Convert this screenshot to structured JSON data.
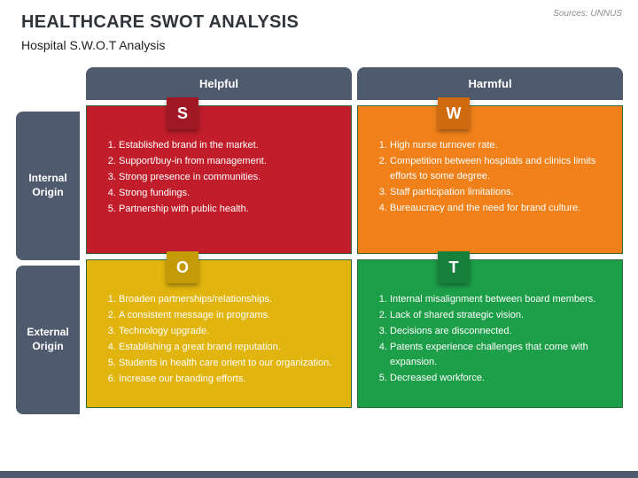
{
  "title": "HEALTHCARE SWOT ANALYSIS",
  "subtitle": "Hospital S.W.O.T Analysis",
  "source": "Sources: UNNUS",
  "colors": {
    "header_bg": "#4f5a6e",
    "border": "#2d6b3e",
    "footer": "#4f5a6e"
  },
  "columns": [
    {
      "label": "Helpful"
    },
    {
      "label": "Harmful"
    }
  ],
  "rows": [
    {
      "label": "Internal Origin"
    },
    {
      "label": "External Origin"
    }
  ],
  "quadrants": {
    "s": {
      "letter": "S",
      "bg": "#c21d2b",
      "letter_bg": "#a01823",
      "items": [
        "Established brand in the market.",
        "Support/buy-in from management.",
        "Strong presence in communities.",
        "Strong fundings.",
        "Partnership with public health."
      ]
    },
    "w": {
      "letter": "W",
      "bg": "#f08019",
      "letter_bg": "#cf6a0f",
      "items": [
        "High nurse turnover rate.",
        "Competition between hospitals and clinics limits efforts to some degree.",
        "Staff participation limitations.",
        "Bureaucracy and the need for brand culture."
      ]
    },
    "o": {
      "letter": "O",
      "bg": "#e1b40e",
      "letter_bg": "#c49a06",
      "items": [
        "Broaden partnerships/relationships.",
        "A consistent message in programs.",
        "Technology upgrade.",
        "Establishing a great brand reputation.",
        "Students in health care orient to our organization.",
        "Increase our branding efforts."
      ]
    },
    "t": {
      "letter": "T",
      "bg": "#1d9e49",
      "letter_bg": "#17813b",
      "items": [
        "Internal misalignment between board members.",
        "Lack of shared strategic vision.",
        "Decisions are disconnected.",
        "Patents experience challenges that come with expansion.",
        "Decreased workforce."
      ]
    }
  }
}
